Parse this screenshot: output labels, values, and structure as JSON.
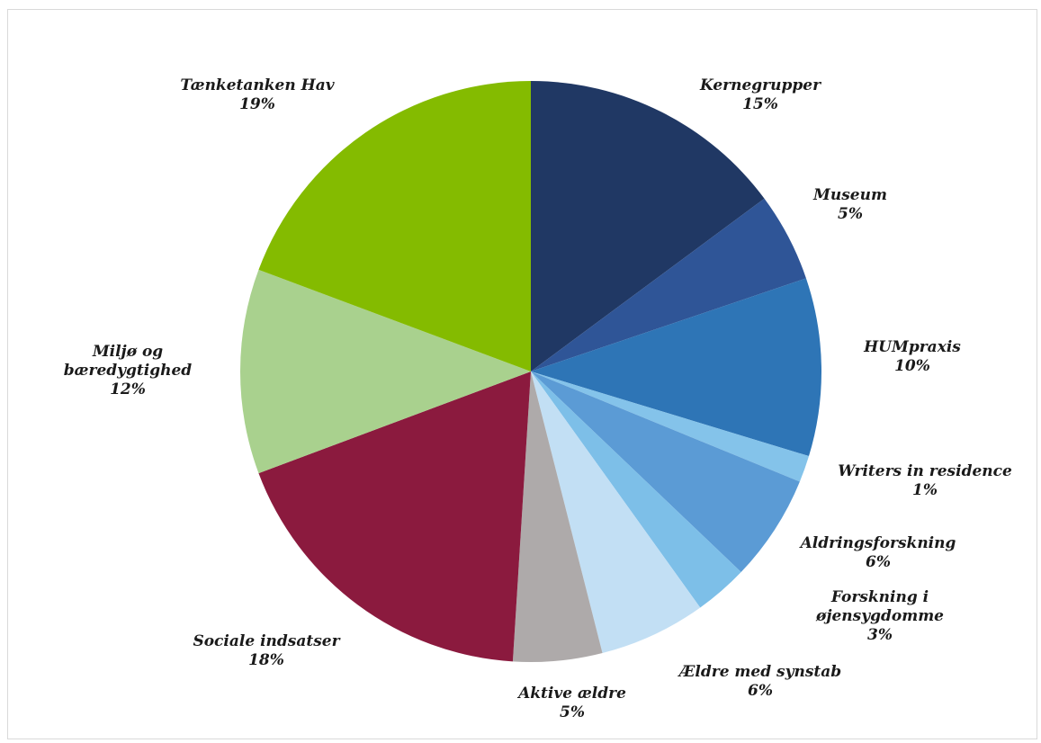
{
  "chart_data": {
    "type": "pie",
    "title": "",
    "start_angle": "12 o'clock",
    "direction": "clockwise",
    "slices": [
      {
        "name": "Kernegrupper",
        "value": 15,
        "label": "15%",
        "color": "#203864"
      },
      {
        "name": "Museum",
        "value": 5,
        "label": "5%",
        "color": "#2F5597"
      },
      {
        "name": "HUMpraxis",
        "value": 10,
        "label": "10%",
        "color": "#2E75B6"
      },
      {
        "name": "Writers in residence",
        "value": 1.5,
        "label": "1%",
        "color": "#84C3EA"
      },
      {
        "name": "Aldringsforskning",
        "value": 6,
        "label": "6%",
        "color": "#5B9BD5"
      },
      {
        "name": "Forskning i øjensygdomme",
        "value": 3,
        "label": "3%",
        "color": "#7DBFE8"
      },
      {
        "name": "Ældre med synstab",
        "value": 6,
        "label": "6%",
        "color": "#C2DFF4"
      },
      {
        "name": "Aktive ældre",
        "value": 5,
        "label": "5%",
        "color": "#AEAAAA"
      },
      {
        "name": "Sociale indsatser",
        "value": 18.5,
        "label": "18%",
        "color": "#8B1A3E"
      },
      {
        "name": "Miljø og bæredygtighed",
        "value": 11.5,
        "label": "12%",
        "color": "#A9D18E"
      },
      {
        "name": "Tænketanken Hav",
        "value": 19.5,
        "label": "19%",
        "color": "#84BB00"
      }
    ],
    "label_lines": [
      [
        "Kernegrupper",
        "15%"
      ],
      [
        "Museum",
        "5%"
      ],
      [
        "HUMpraxis",
        "10%"
      ],
      [
        "Writers in residence",
        "1%"
      ],
      [
        "Aldringsforskning",
        "6%"
      ],
      [
        "Forskning i",
        "øjensygdomme",
        "3%"
      ],
      [
        "Ældre med synstab",
        "6%"
      ],
      [
        "Aktive ældre",
        "5%"
      ],
      [
        "Sociale indsatser",
        "18%"
      ],
      [
        "Miljø og",
        "bæredygtighed",
        "12%"
      ],
      [
        "Tænketanken Hav",
        "19%"
      ]
    ],
    "legend": "none"
  }
}
